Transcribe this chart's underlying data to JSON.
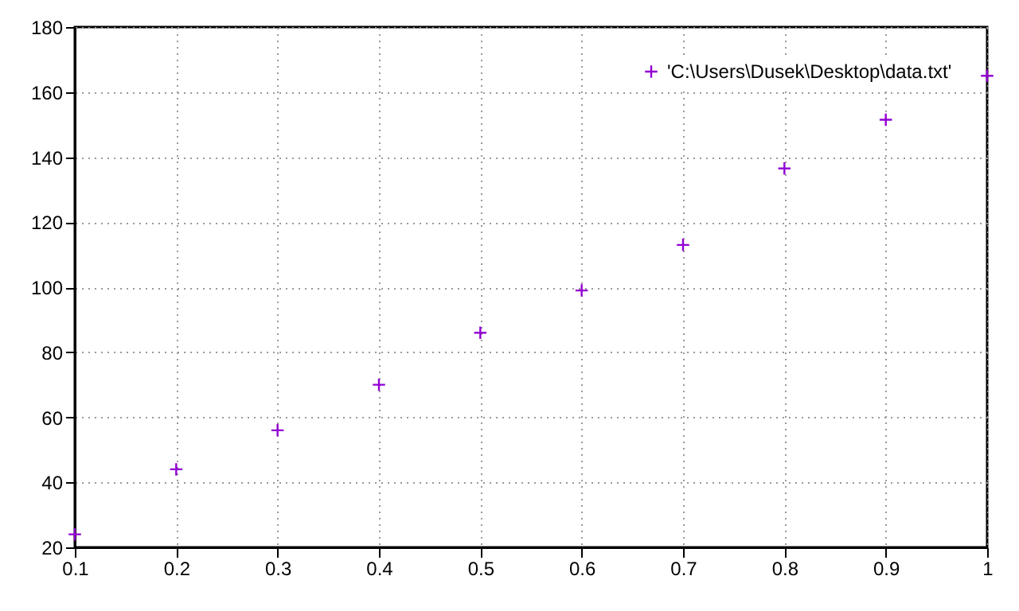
{
  "chart_data": {
    "type": "scatter",
    "x": [
      0.1,
      0.2,
      0.3,
      0.4,
      0.5,
      0.6,
      0.7,
      0.8,
      0.9,
      1.0
    ],
    "series": [
      {
        "name": "'C:\\Users\\Dusek\\Desktop\\data.txt'",
        "color": "#9400d3",
        "values": [
          24,
          44,
          56,
          70,
          86,
          99,
          113,
          136.5,
          151.5,
          165
        ]
      }
    ],
    "xlim": [
      0.1,
      1
    ],
    "xticks": [
      0.1,
      0.2,
      0.3,
      0.4,
      0.5,
      0.6,
      0.7,
      0.8,
      0.9,
      1
    ],
    "ylim": [
      20,
      180
    ],
    "yticks": [
      20,
      40,
      60,
      80,
      100,
      120,
      140,
      160,
      180
    ],
    "grid": true,
    "legend": "top right",
    "marker": "cross"
  }
}
